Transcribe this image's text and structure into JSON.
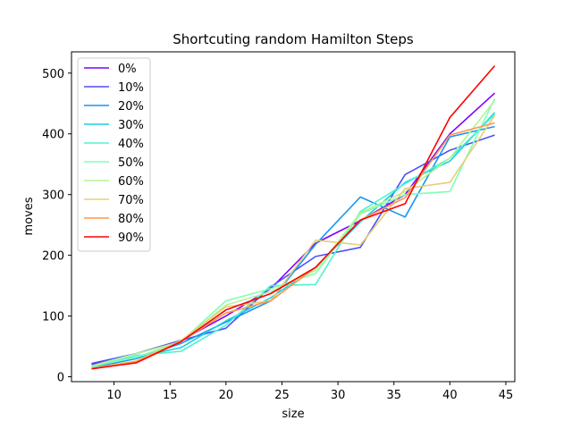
{
  "chart_data": {
    "type": "line",
    "title": "Shortcuting random Hamilton Steps",
    "xlabel": "size",
    "ylabel": "moves",
    "xlim": [
      6.2,
      45.8
    ],
    "ylim": [
      -8,
      535
    ],
    "xticks": [
      10,
      15,
      20,
      25,
      30,
      35,
      40,
      45
    ],
    "yticks": [
      0,
      100,
      200,
      300,
      400,
      500
    ],
    "grid": false,
    "legend_position": "top-left",
    "x": [
      8,
      12,
      16,
      20,
      24,
      28,
      32,
      36,
      40,
      44
    ],
    "series": [
      {
        "name": "0%",
        "color": "#8000ff",
        "values": [
          20,
          38,
          60,
          100,
          145,
          220,
          257,
          300,
          400,
          467
        ]
      },
      {
        "name": "10%",
        "color": "#4c4ffc",
        "values": [
          22,
          38,
          60,
          80,
          148,
          198,
          213,
          333,
          373,
          398
        ]
      },
      {
        "name": "20%",
        "color": "#1996f3",
        "values": [
          15,
          30,
          55,
          90,
          125,
          218,
          296,
          263,
          395,
          412
        ]
      },
      {
        "name": "30%",
        "color": "#1acfe3",
        "values": [
          18,
          32,
          48,
          92,
          130,
          180,
          255,
          320,
          355,
          435
        ]
      },
      {
        "name": "40%",
        "color": "#4df3ce",
        "values": [
          16,
          35,
          42,
          85,
          150,
          152,
          272,
          318,
          360,
          432
        ]
      },
      {
        "name": "50%",
        "color": "#80ffb4",
        "values": [
          17,
          32,
          58,
          125,
          145,
          170,
          268,
          300,
          305,
          458
        ]
      },
      {
        "name": "60%",
        "color": "#b3f396",
        "values": [
          18,
          38,
          58,
          118,
          140,
          175,
          270,
          305,
          360,
          455
        ]
      },
      {
        "name": "70%",
        "color": "#e6cf74",
        "values": [
          14,
          26,
          60,
          115,
          125,
          225,
          217,
          310,
          320,
          430
        ]
      },
      {
        "name": "80%",
        "color": "#ff964f",
        "values": [
          13,
          25,
          58,
          105,
          125,
          180,
          258,
          295,
          398,
          418
        ]
      },
      {
        "name": "90%",
        "color": "#ff0000",
        "values": [
          13,
          23,
          58,
          110,
          137,
          180,
          258,
          285,
          427,
          512
        ]
      }
    ]
  }
}
